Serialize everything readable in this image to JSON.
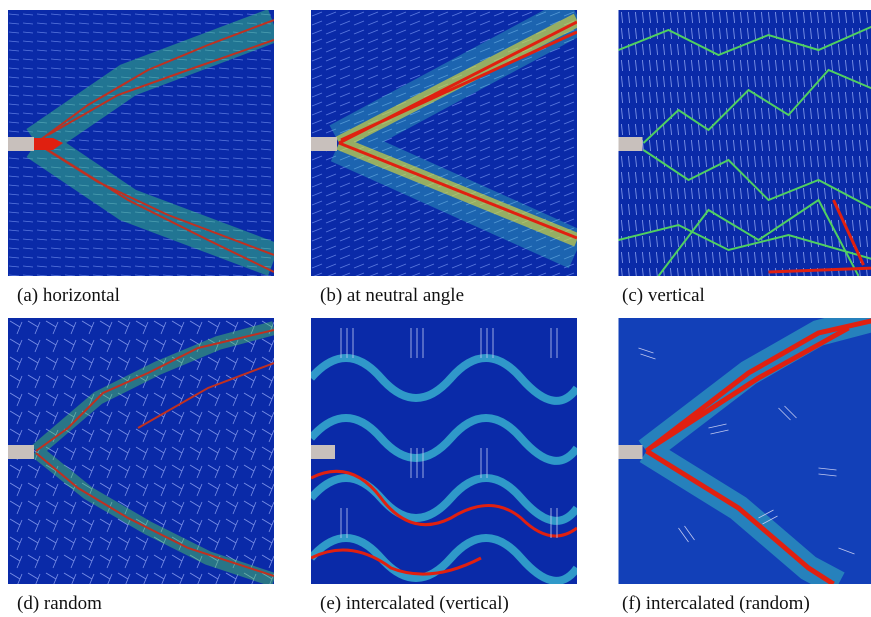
{
  "figure": {
    "panels": [
      {
        "caption": "(a) horizontal"
      },
      {
        "caption": "(b) at neutral angle"
      },
      {
        "caption": "(c) vertical"
      },
      {
        "caption": "(d) random"
      },
      {
        "caption": "(e) intercalated (vertical)"
      },
      {
        "caption": "(f) intercalated (random)"
      }
    ]
  }
}
